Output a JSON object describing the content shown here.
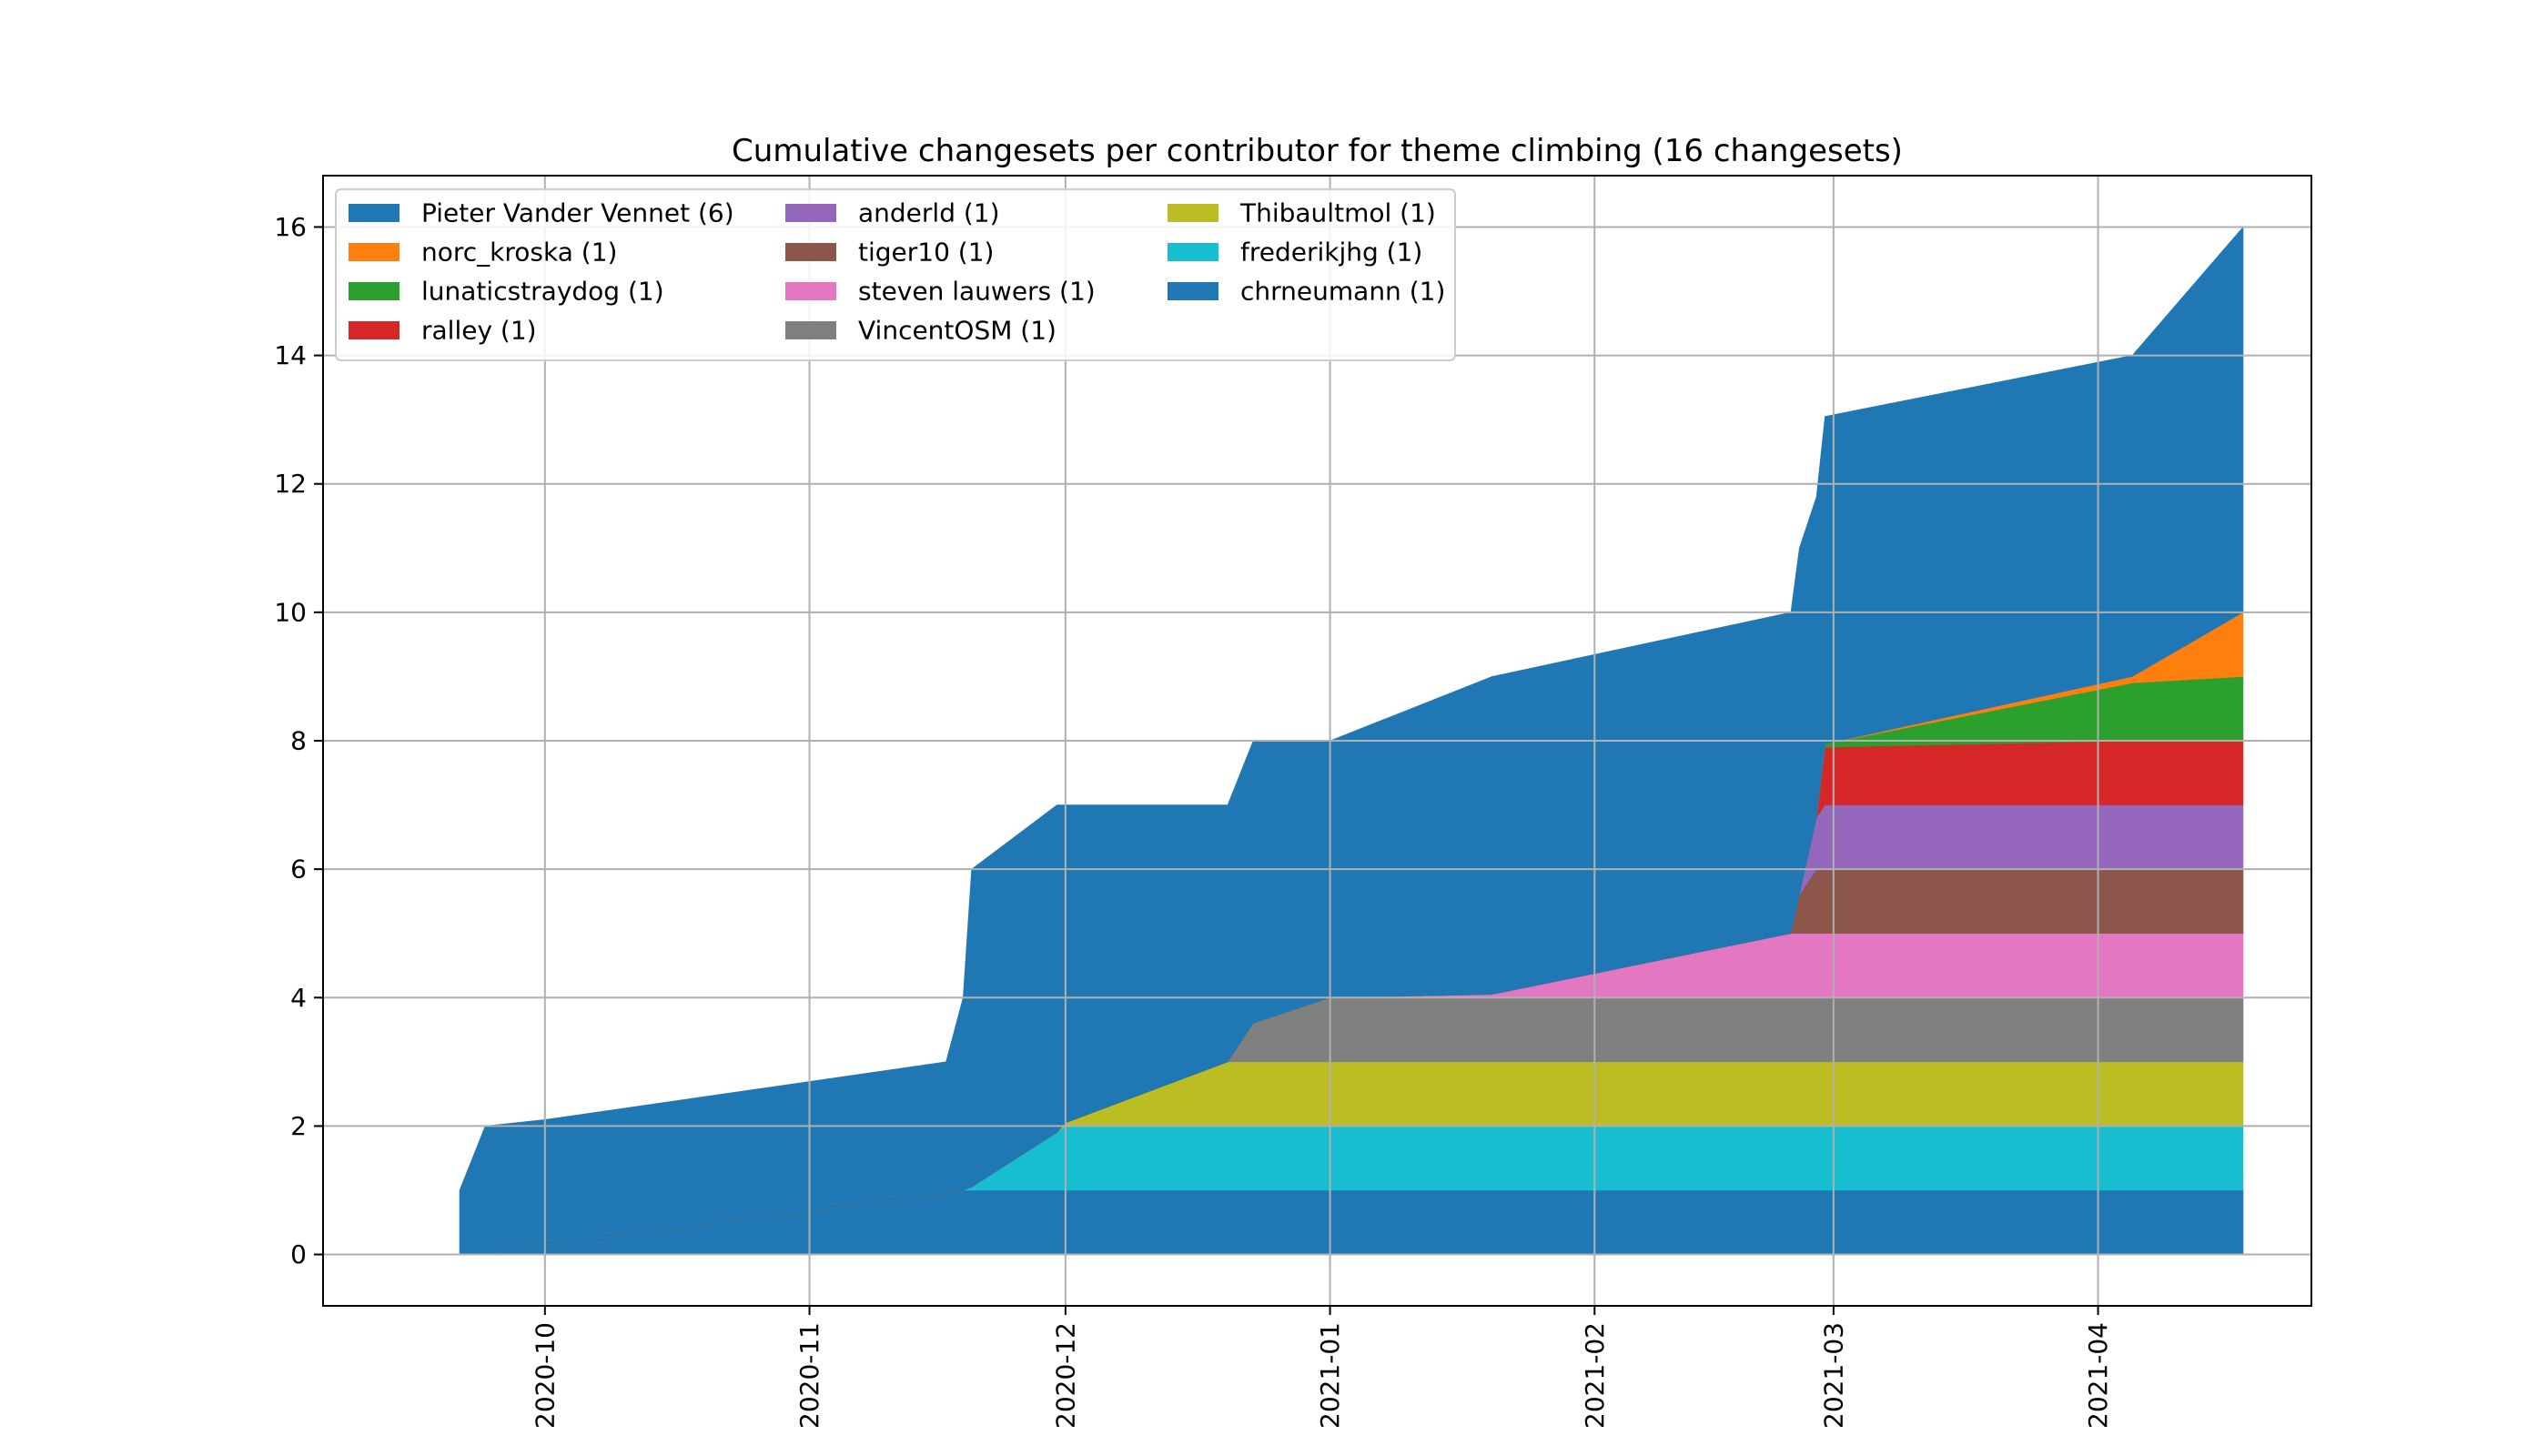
{
  "chart_data": {
    "type": "area",
    "title": "Cumulative changesets per contributor for theme climbing (16 changesets)",
    "xlabel": "",
    "ylabel": "",
    "x_axis_type": "date",
    "xlim": [
      "2020-09-05",
      "2021-04-26"
    ],
    "ylim": [
      -0.8,
      16.8
    ],
    "x_ticks": [
      "2020-10-01",
      "2020-11-01",
      "2020-12-01",
      "2021-01-01",
      "2021-02-01",
      "2021-03-01",
      "2021-04-01"
    ],
    "x_tick_labels": [
      "2020-10",
      "2020-11",
      "2020-12",
      "2021-01",
      "2021-02",
      "2021-03",
      "2021-04"
    ],
    "y_ticks": [
      0,
      2,
      4,
      6,
      8,
      10,
      12,
      14,
      16
    ],
    "y_tick_labels": [
      "0",
      "2",
      "4",
      "6",
      "8",
      "10",
      "12",
      "14",
      "16"
    ],
    "grid": true,
    "legend_position": "top-left",
    "legend_columns": 3,
    "x": [
      "2020-09-21",
      "2020-09-24",
      "2020-10-01",
      "2020-11-17",
      "2020-11-19",
      "2020-11-20",
      "2020-11-30",
      "2020-12-01",
      "2020-12-20",
      "2020-12-23",
      "2021-01-01",
      "2021-01-20",
      "2021-02-24",
      "2021-02-25",
      "2021-02-27",
      "2021-02-28",
      "2021-04-05",
      "2021-04-18"
    ],
    "series": [
      {
        "name": "chrneumann (1)",
        "color": "#1f77b4",
        "values": [
          0,
          0,
          0.15,
          0.95,
          1,
          1,
          1,
          1,
          1,
          1,
          1,
          1,
          1,
          1,
          1,
          1,
          1,
          1
        ]
      },
      {
        "name": "frederikjhg (1)",
        "color": "#17becf",
        "values": [
          0,
          0,
          0,
          0,
          0,
          0.05,
          0.9,
          1,
          1,
          1,
          1,
          1,
          1,
          1,
          1,
          1,
          1,
          1
        ]
      },
      {
        "name": "Thibaultmol (1)",
        "color": "#bcbd22",
        "values": [
          0,
          0,
          0,
          0,
          0,
          0,
          0,
          0.05,
          1,
          1,
          1,
          1,
          1,
          1,
          1,
          1,
          1,
          1
        ]
      },
      {
        "name": "VincentOSM (1)",
        "color": "#7f7f7f",
        "values": [
          0,
          0,
          0,
          0,
          0,
          0,
          0,
          0,
          0,
          0.6,
          1,
          1,
          1,
          1,
          1,
          1,
          1,
          1
        ]
      },
      {
        "name": "steven lauwers (1)",
        "color": "#e377c2",
        "values": [
          0,
          0,
          0,
          0,
          0,
          0,
          0,
          0,
          0,
          0,
          0,
          0.05,
          1,
          1,
          1,
          1,
          1,
          1
        ]
      },
      {
        "name": "tiger10 (1)",
        "color": "#8c564b",
        "values": [
          0,
          0,
          0,
          0,
          0,
          0,
          0,
          0,
          0,
          0,
          0,
          0,
          0,
          0.6,
          1,
          1,
          1,
          1
        ]
      },
      {
        "name": "anderld (1)",
        "color": "#9467bd",
        "values": [
          0,
          0,
          0,
          0,
          0,
          0,
          0,
          0,
          0,
          0,
          0,
          0,
          0,
          0,
          0.8,
          1,
          1,
          1
        ]
      },
      {
        "name": "ralley (1)",
        "color": "#d62728",
        "values": [
          0,
          0,
          0,
          0,
          0,
          0,
          0,
          0,
          0,
          0,
          0,
          0,
          0,
          0,
          0,
          0.9,
          1,
          1
        ]
      },
      {
        "name": "lunaticstraydog (1)",
        "color": "#2ca02c",
        "values": [
          0,
          0,
          0,
          0,
          0,
          0,
          0,
          0,
          0,
          0,
          0,
          0,
          0,
          0,
          0,
          0.05,
          0.9,
          1
        ]
      },
      {
        "name": "norc_kroska (1)",
        "color": "#ff7f0e",
        "values": [
          0,
          0,
          0,
          0,
          0,
          0,
          0,
          0,
          0,
          0,
          0,
          0,
          0,
          0,
          0,
          0,
          0.1,
          1
        ]
      },
      {
        "name": "Pieter Vander Vennet (6)",
        "color": "#1f77b4",
        "values": [
          1,
          2,
          1.95,
          2.05,
          3,
          4.95,
          5.1,
          4.95,
          4,
          4.4,
          4,
          4.95,
          5,
          5.4,
          5,
          5.1,
          5,
          6
        ]
      }
    ],
    "legend_order": [
      "Pieter Vander Vennet (6)",
      "norc_kroska (1)",
      "lunaticstraydog (1)",
      "ralley (1)",
      "anderld (1)",
      "tiger10 (1)",
      "steven lauwers (1)",
      "VincentOSM (1)",
      "Thibaultmol (1)",
      "frederikjhg (1)",
      "chrneumann (1)"
    ]
  }
}
